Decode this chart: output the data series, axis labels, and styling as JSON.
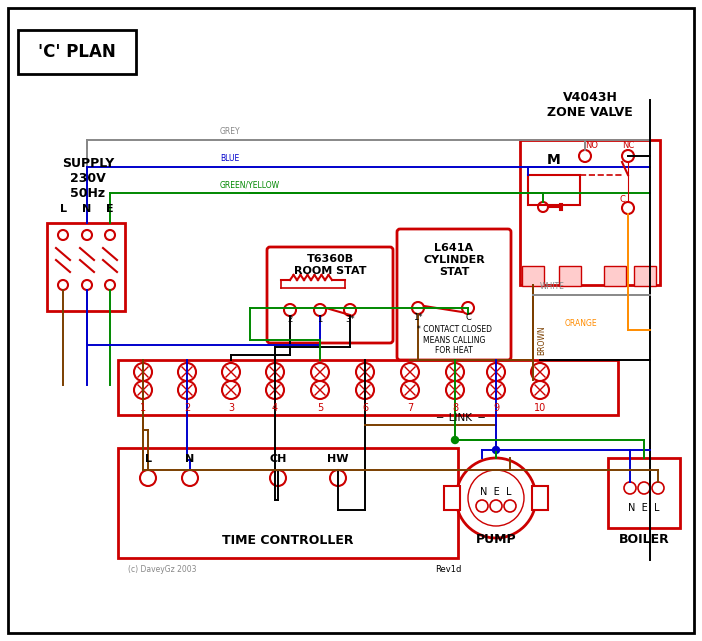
{
  "bg": "#ffffff",
  "red": "#cc0000",
  "blue": "#0000cc",
  "green": "#008800",
  "grey": "#888888",
  "brown": "#7B3F00",
  "orange": "#FF8C00",
  "black": "#000000",
  "title": "'C' PLAN",
  "supply_text": "SUPPLY\n230V\n50Hz",
  "room_stat_title": "T6360B\nROOM STAT",
  "cyl_stat_title": "L641A\nCYLINDER\nSTAT",
  "zone_valve_title": "V4043H\nZONE VALVE",
  "time_ctrl_label": "TIME CONTROLLER",
  "pump_label": "PUMP",
  "boiler_label": "BOILER",
  "link_label": "LINK",
  "contact_note": "* CONTACT CLOSED\nMEANS CALLING\nFOR HEAT",
  "rev_label": "Rev1d",
  "copy_label": "(c) DaveyGz 2003"
}
